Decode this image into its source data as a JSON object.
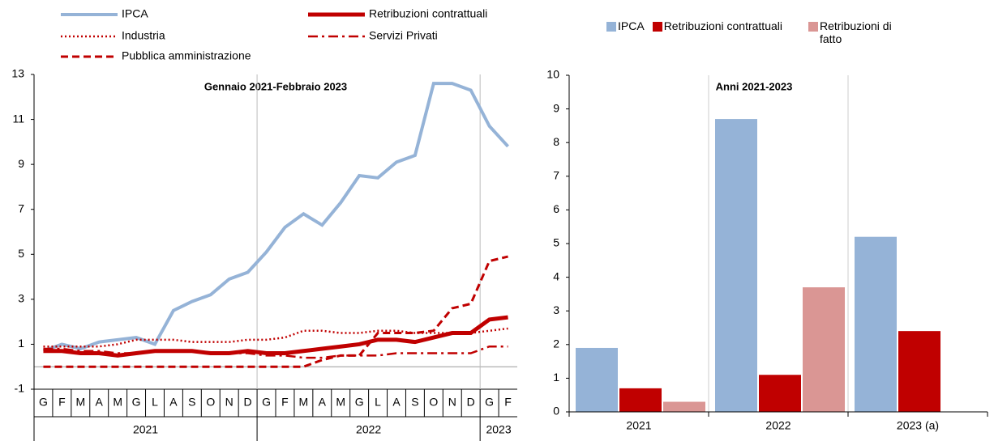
{
  "chart_data": [
    {
      "type": "line",
      "annotation": "Gennaio 2021-Febbraio 2023",
      "categories": [
        "G",
        "F",
        "M",
        "A",
        "M",
        "G",
        "L",
        "A",
        "S",
        "O",
        "N",
        "D",
        "G",
        "F",
        "M",
        "A",
        "M",
        "G",
        "L",
        "A",
        "S",
        "O",
        "N",
        "D",
        "G",
        "F"
      ],
      "group_labels": [
        "2021",
        "2022",
        "2023"
      ],
      "group_sizes": [
        12,
        12,
        2
      ],
      "ylim": [
        -1,
        13
      ],
      "yticks": [
        -1,
        1,
        3,
        5,
        7,
        9,
        11,
        13
      ],
      "series": [
        {
          "name": "IPCA",
          "color": "#95b3d7",
          "style": "solid",
          "width": 4,
          "values": [
            0.7,
            1.0,
            0.8,
            1.1,
            1.2,
            1.3,
            1.0,
            2.5,
            2.9,
            3.2,
            3.9,
            4.2,
            5.1,
            6.2,
            6.8,
            6.3,
            7.3,
            8.5,
            8.4,
            9.1,
            9.4,
            12.6,
            12.6,
            12.3,
            10.7,
            9.8
          ]
        },
        {
          "name": "Retribuzioni contrattuali",
          "color": "#c00000",
          "style": "solid",
          "width": 5,
          "values": [
            0.7,
            0.7,
            0.6,
            0.6,
            0.5,
            0.6,
            0.7,
            0.7,
            0.7,
            0.6,
            0.6,
            0.7,
            0.6,
            0.6,
            0.7,
            0.8,
            0.9,
            1.0,
            1.2,
            1.2,
            1.1,
            1.3,
            1.5,
            1.5,
            2.1,
            2.2
          ]
        },
        {
          "name": "Industria",
          "color": "#c00000",
          "style": "dotted",
          "width": 2.5,
          "values": [
            0.9,
            0.9,
            0.9,
            0.9,
            1.0,
            1.2,
            1.2,
            1.2,
            1.1,
            1.1,
            1.1,
            1.2,
            1.2,
            1.3,
            1.6,
            1.6,
            1.5,
            1.5,
            1.6,
            1.6,
            1.5,
            1.5,
            1.5,
            1.5,
            1.6,
            1.7
          ]
        },
        {
          "name": "Servizi Privati",
          "color": "#c00000",
          "style": "dashdot",
          "width": 2.5,
          "values": [
            0.8,
            0.8,
            0.7,
            0.7,
            0.6,
            0.6,
            0.7,
            0.7,
            0.7,
            0.6,
            0.6,
            0.6,
            0.5,
            0.5,
            0.4,
            0.4,
            0.5,
            0.5,
            0.5,
            0.6,
            0.6,
            0.6,
            0.6,
            0.6,
            0.9,
            0.9
          ]
        },
        {
          "name": "Pubblica amministrazione",
          "color": "#c00000",
          "style": "dashed",
          "width": 3,
          "values": [
            0,
            0,
            0,
            0,
            0,
            0,
            0,
            0,
            0,
            0,
            0,
            0,
            0,
            0,
            0,
            0.3,
            0.5,
            0.5,
            1.5,
            1.5,
            1.5,
            1.6,
            2.6,
            2.8,
            4.7,
            4.9
          ]
        }
      ]
    },
    {
      "type": "bar",
      "annotation": "Anni 2021-2023",
      "categories": [
        "2021",
        "2022",
        "2023 (a)"
      ],
      "ylim": [
        0,
        10
      ],
      "yticks": [
        0,
        1,
        2,
        3,
        4,
        5,
        6,
        7,
        8,
        9,
        10
      ],
      "series": [
        {
          "name": "IPCA",
          "color": "#95b3d7",
          "values": [
            1.9,
            8.7,
            5.2
          ]
        },
        {
          "name": "Retribuzioni contrattuali",
          "color": "#c00000",
          "values": [
            0.7,
            1.1,
            2.4
          ]
        },
        {
          "name": "Retribuzioni di fatto",
          "color": "#da9694",
          "values": [
            0.3,
            3.7,
            null
          ]
        }
      ]
    }
  ]
}
